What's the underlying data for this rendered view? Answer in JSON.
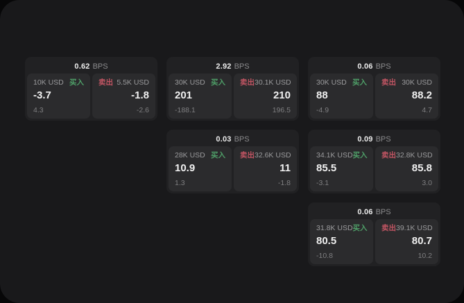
{
  "labels": {
    "bps_unit": "BPS",
    "buy": "买入",
    "sell": "卖出"
  },
  "colors": {
    "panel_bg": "#19191b",
    "card_bg": "#212123",
    "tile_bg": "#2b2b2d",
    "buy_green": "#4f9f68",
    "sell_red": "#c15563"
  },
  "cards": [
    {
      "bps": "0.62",
      "buy": {
        "amount": "10K USD",
        "value": "-3.7",
        "sub": "4.3"
      },
      "sell": {
        "amount": "5.5K USD",
        "value": "-1.8",
        "sub": "-2.6"
      }
    },
    {
      "bps": "2.92",
      "buy": {
        "amount": "30K USD",
        "value": "201",
        "sub": "-188.1"
      },
      "sell": {
        "amount": "30.1K USD",
        "value": "210",
        "sub": "196.5"
      }
    },
    {
      "bps": "0.06",
      "buy": {
        "amount": "30K USD",
        "value": "88",
        "sub": "-4.9"
      },
      "sell": {
        "amount": "30K USD",
        "value": "88.2",
        "sub": "4.7"
      }
    },
    {
      "bps": "0.03",
      "buy": {
        "amount": "28K USD",
        "value": "10.9",
        "sub": "1.3"
      },
      "sell": {
        "amount": "32.6K USD",
        "value": "11",
        "sub": "-1.8"
      }
    },
    {
      "bps": "0.09",
      "buy": {
        "amount": "34.1K USD",
        "value": "85.5",
        "sub": "-3.1"
      },
      "sell": {
        "amount": "32.8K USD",
        "value": "85.8",
        "sub": "3.0"
      }
    },
    {
      "bps": "0.06",
      "buy": {
        "amount": "31.8K USD",
        "value": "80.5",
        "sub": "-10.8"
      },
      "sell": {
        "amount": "39.1K USD",
        "value": "80.7",
        "sub": "10.2"
      }
    }
  ]
}
